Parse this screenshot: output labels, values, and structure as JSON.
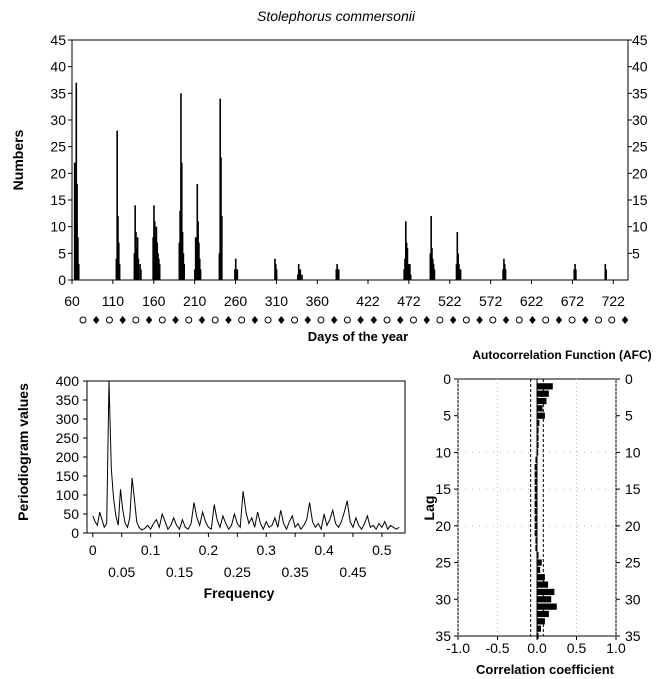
{
  "chart_data": [
    {
      "type": "bar",
      "title": "Stolephorus commersonii",
      "xlabel": "Days of the year",
      "ylabel": "Numbers",
      "xlim": [
        60,
        740
      ],
      "ylim": [
        0,
        45
      ],
      "x_tick_labels": [
        "60",
        "110",
        "160",
        "210",
        "260",
        "310",
        "360",
        "422",
        "472",
        "522",
        "572",
        "622",
        "672",
        "722"
      ],
      "x_tick_values": [
        60,
        110,
        160,
        210,
        260,
        310,
        360,
        422,
        472,
        522,
        572,
        622,
        672,
        722
      ],
      "y_ticks": [
        0,
        5,
        10,
        15,
        20,
        25,
        30,
        35,
        40,
        45
      ],
      "right_y_tick_labels": [
        "5",
        "10",
        "15",
        "20",
        "25",
        "30",
        "35",
        "40",
        "45"
      ],
      "moon_phase_markers": [
        "full",
        "new",
        "full",
        "new",
        "full",
        "new",
        "full",
        "new",
        "full",
        "new",
        "full",
        "new",
        "full",
        "new",
        "full",
        "new",
        "full",
        "new",
        "full",
        "new",
        "full",
        "new",
        "new",
        "full",
        "new",
        "full",
        "new",
        "full",
        "new",
        "full",
        "new",
        "full",
        "new",
        "full",
        "new",
        "full",
        "new",
        "full",
        "new",
        "full",
        "full",
        "new"
      ],
      "x": [
        63,
        64,
        65,
        66,
        67,
        68,
        114,
        115,
        116,
        117,
        118,
        136,
        137,
        138,
        139,
        140,
        141,
        143,
        144,
        159,
        160,
        161,
        162,
        163,
        164,
        165,
        166,
        167,
        191,
        192,
        193,
        194,
        195,
        196,
        197,
        210,
        211,
        212,
        213,
        214,
        215,
        216,
        217,
        240,
        241,
        242,
        243,
        259,
        260,
        262,
        308,
        309,
        310,
        336,
        337,
        339,
        341,
        383,
        384,
        385,
        386,
        466,
        467,
        468,
        469,
        470,
        471,
        472,
        473,
        474,
        498,
        499,
        500,
        501,
        502,
        503,
        530,
        531,
        532,
        533,
        534,
        535,
        587,
        588,
        589,
        590,
        674,
        675,
        676,
        712,
        713
      ],
      "values": [
        22,
        11,
        37,
        18,
        8,
        3,
        4,
        28,
        12,
        7,
        3,
        5,
        14,
        9,
        6,
        8,
        4,
        3,
        2,
        8,
        14,
        11,
        8,
        10,
        7,
        5,
        4,
        3,
        7,
        13,
        35,
        22,
        9,
        5,
        3,
        2,
        8,
        5,
        18,
        11,
        7,
        4,
        2,
        5,
        34,
        23,
        12,
        2,
        4,
        2,
        4,
        3,
        2,
        1,
        3,
        2,
        1,
        2,
        3,
        2,
        2,
        2,
        4,
        11,
        7,
        6,
        3,
        2,
        3,
        1,
        5,
        12,
        6,
        4,
        3,
        2,
        3,
        9,
        5,
        3,
        2,
        2,
        2,
        4,
        3,
        2,
        2,
        3,
        2,
        3,
        2
      ]
    },
    {
      "type": "line",
      "xlabel": "Frequency",
      "ylabel": "Periodiogram values",
      "xlim": [
        -0.01,
        0.54
      ],
      "ylim": [
        0,
        400
      ],
      "x_tick_labels_upper": [
        "0",
        "0.1",
        "0.2",
        "0.3",
        "0.4",
        "0.5"
      ],
      "x_tick_labels_lower": [
        "0.05",
        "0.15",
        "0.25",
        "0.35",
        "0.45"
      ],
      "y_ticks": [
        0,
        50,
        100,
        150,
        200,
        250,
        300,
        350,
        400
      ],
      "x": [
        0,
        0.004,
        0.008,
        0.012,
        0.016,
        0.02,
        0.024,
        0.028,
        0.032,
        0.036,
        0.04,
        0.044,
        0.048,
        0.052,
        0.056,
        0.06,
        0.064,
        0.068,
        0.072,
        0.076,
        0.08,
        0.085,
        0.09,
        0.095,
        0.1,
        0.105,
        0.11,
        0.115,
        0.12,
        0.125,
        0.13,
        0.135,
        0.14,
        0.145,
        0.15,
        0.155,
        0.16,
        0.165,
        0.17,
        0.175,
        0.18,
        0.185,
        0.19,
        0.195,
        0.2,
        0.205,
        0.21,
        0.215,
        0.22,
        0.225,
        0.23,
        0.235,
        0.24,
        0.245,
        0.25,
        0.255,
        0.26,
        0.265,
        0.27,
        0.275,
        0.28,
        0.285,
        0.29,
        0.295,
        0.3,
        0.305,
        0.31,
        0.315,
        0.32,
        0.325,
        0.33,
        0.335,
        0.34,
        0.345,
        0.35,
        0.355,
        0.36,
        0.365,
        0.37,
        0.375,
        0.38,
        0.385,
        0.39,
        0.395,
        0.4,
        0.405,
        0.41,
        0.415,
        0.42,
        0.425,
        0.43,
        0.435,
        0.44,
        0.445,
        0.45,
        0.455,
        0.46,
        0.465,
        0.47,
        0.475,
        0.48,
        0.485,
        0.49,
        0.495,
        0.5,
        0.505,
        0.51,
        0.515,
        0.52,
        0.525,
        0.53
      ],
      "values": [
        45,
        30,
        20,
        55,
        35,
        15,
        25,
        400,
        170,
        90,
        45,
        20,
        115,
        60,
        25,
        15,
        40,
        145,
        90,
        30,
        15,
        8,
        12,
        20,
        10,
        25,
        35,
        15,
        50,
        30,
        10,
        20,
        40,
        20,
        10,
        35,
        15,
        10,
        25,
        80,
        40,
        20,
        55,
        30,
        15,
        10,
        75,
        35,
        15,
        45,
        25,
        10,
        20,
        50,
        25,
        15,
        110,
        55,
        25,
        40,
        15,
        55,
        25,
        10,
        30,
        15,
        20,
        40,
        15,
        60,
        25,
        10,
        30,
        45,
        15,
        25,
        10,
        20,
        35,
        80,
        30,
        15,
        25,
        10,
        50,
        20,
        35,
        60,
        25,
        15,
        30,
        55,
        85,
        30,
        15,
        40,
        20,
        10,
        25,
        45,
        15,
        20,
        10,
        25,
        15,
        30,
        10,
        20,
        15,
        10,
        15
      ]
    },
    {
      "type": "bar",
      "orientation": "horizontal",
      "title": "Autocorrelation Function (AFC)",
      "xlabel": "Correlation coefficient",
      "ylabel": "Lag",
      "xlim": [
        -1.0,
        1.0
      ],
      "ylim": [
        0,
        35
      ],
      "x_ticks": [
        "-1.0",
        "-0.5",
        "0.0",
        "0.5",
        "1.0"
      ],
      "y_ticks": [
        "0",
        "5",
        "10",
        "15",
        "20",
        "25",
        "30",
        "35"
      ],
      "confidence_band": 0.08,
      "lags": [
        1,
        2,
        3,
        4,
        5,
        6,
        7,
        8,
        9,
        10,
        11,
        12,
        13,
        14,
        15,
        16,
        17,
        18,
        19,
        20,
        21,
        22,
        23,
        24,
        25,
        26,
        27,
        28,
        29,
        30,
        31,
        32,
        33,
        34,
        35
      ],
      "values": [
        0.2,
        0.15,
        0.12,
        0.07,
        0.1,
        0.03,
        0.02,
        0.02,
        0.02,
        0.0,
        -0.02,
        -0.03,
        -0.03,
        -0.03,
        -0.03,
        -0.03,
        -0.03,
        -0.03,
        -0.03,
        -0.03,
        -0.03,
        -0.02,
        -0.02,
        0.02,
        0.06,
        0.04,
        0.1,
        0.14,
        0.22,
        0.18,
        0.25,
        0.15,
        0.1,
        0.05,
        0.02
      ]
    }
  ]
}
